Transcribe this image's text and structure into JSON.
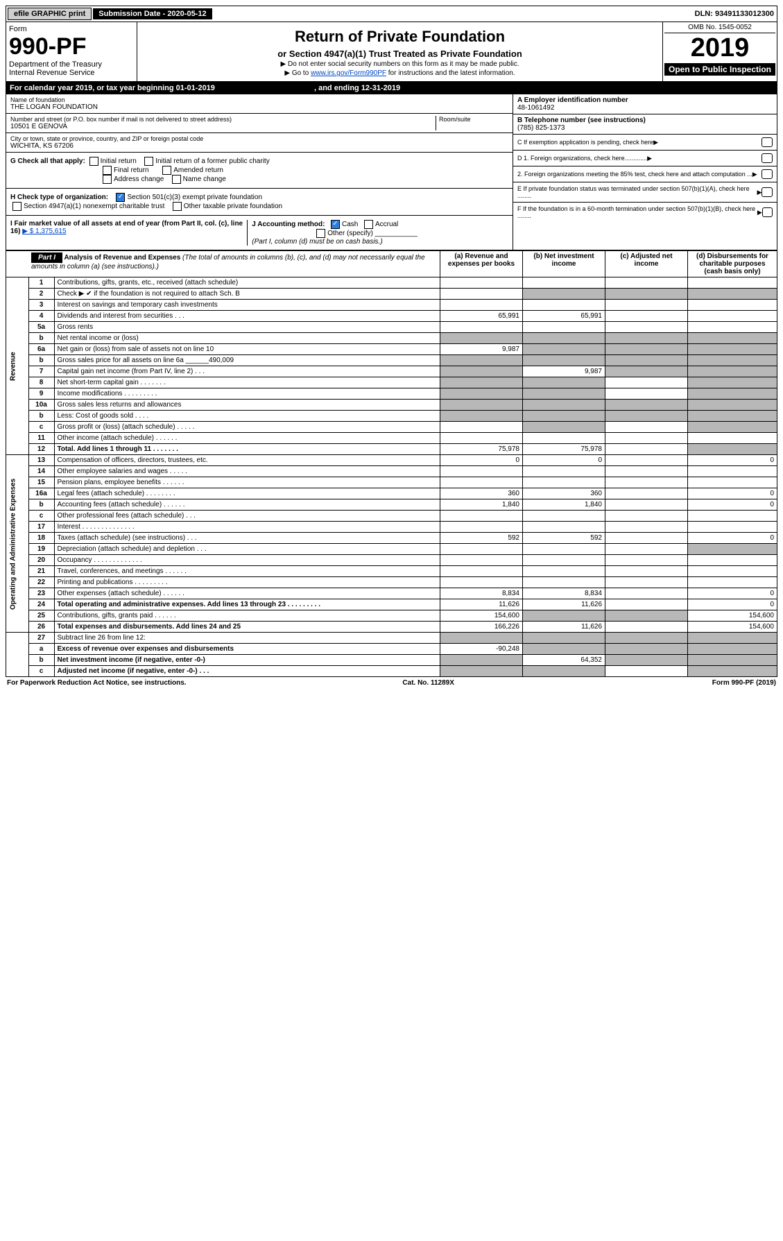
{
  "top": {
    "efile": "efile GRAPHIC print",
    "subdate_label": "Submission Date - 2020-05-12",
    "dln": "DLN: 93491133012300"
  },
  "header": {
    "form_word": "Form",
    "form_num": "990-PF",
    "dept": "Department of the Treasury",
    "irs": "Internal Revenue Service",
    "title": "Return of Private Foundation",
    "subtitle": "or Section 4947(a)(1) Trust Treated as Private Foundation",
    "warn": "▶ Do not enter social security numbers on this form as it may be made public.",
    "goto_pre": "▶ Go to ",
    "goto_link": "www.irs.gov/Form990PF",
    "goto_post": " for instructions and the latest information.",
    "omb": "OMB No. 1545-0052",
    "year": "2019",
    "open": "Open to Public Inspection"
  },
  "cal": {
    "line": "For calendar year 2019, or tax year beginning 01-01-2019",
    "ending": ", and ending 12-31-2019"
  },
  "id": {
    "name_label": "Name of foundation",
    "name": "THE LOGAN FOUNDATION",
    "addr_label": "Number and street (or P.O. box number if mail is not delivered to street address)",
    "addr": "10501 E GENOVA",
    "room_label": "Room/suite",
    "city_label": "City or town, state or province, country, and ZIP or foreign postal code",
    "city": "WICHITA, KS  67206",
    "a_label": "A Employer identification number",
    "a_val": "48-1061492",
    "b_label": "B Telephone number (see instructions)",
    "b_val": "(785) 825-1373",
    "c_label": "C  If exemption application is pending, check here",
    "d1": "D 1. Foreign organizations, check here.............",
    "d2": "2. Foreign organizations meeting the 85% test, check here and attach computation ...",
    "e": "E  If private foundation status was terminated under section 507(b)(1)(A), check here ........",
    "f": "F  If the foundation is in a 60-month termination under section 507(b)(1)(B), check here ........"
  },
  "g": {
    "label": "G Check all that apply:",
    "initial": "Initial return",
    "initial_former": "Initial return of a former public charity",
    "final": "Final return",
    "amended": "Amended return",
    "addr_change": "Address change",
    "name_change": "Name change"
  },
  "h": {
    "label": "H Check type of organization:",
    "s501": "Section 501(c)(3) exempt private foundation",
    "s4947": "Section 4947(a)(1) nonexempt charitable trust",
    "other": "Other taxable private foundation"
  },
  "i": {
    "label": "I Fair market value of all assets at end of year (from Part II, col. (c), line 16)",
    "amt": "▶ $  1,375,615"
  },
  "j": {
    "label": "J Accounting method:",
    "cash": "Cash",
    "accrual": "Accrual",
    "other": "Other (specify)",
    "note": "(Part I, column (d) must be on cash basis.)"
  },
  "part1": {
    "tag": "Part I",
    "title": "Analysis of Revenue and Expenses",
    "sub": " (The total of amounts in columns (b), (c), and (d) may not necessarily equal the amounts in column (a) (see instructions).)",
    "cols": {
      "a": "(a) Revenue and expenses per books",
      "b": "(b) Net investment income",
      "c": "(c) Adjusted net income",
      "d": "(d) Disbursements for charitable purposes (cash basis only)"
    }
  },
  "sections": {
    "rev": "Revenue",
    "exp": "Operating and Administrative Expenses"
  },
  "rows": [
    {
      "n": "1",
      "d": "Contributions, gifts, grants, etc., received (attach schedule)",
      "a": "",
      "b": "",
      "c": "",
      "dd": ""
    },
    {
      "n": "2",
      "d": "Check ▶ ✔ if the foundation is not required to attach Sch. B",
      "a": "",
      "b": "",
      "c": "",
      "dd": "",
      "shadebcd": true
    },
    {
      "n": "3",
      "d": "Interest on savings and temporary cash investments",
      "a": "",
      "b": "",
      "c": "",
      "dd": ""
    },
    {
      "n": "4",
      "d": "Dividends and interest from securities   .   .   .",
      "a": "65,991",
      "b": "65,991",
      "c": "",
      "dd": ""
    },
    {
      "n": "5a",
      "d": "Gross rents",
      "a": "",
      "b": "",
      "c": "",
      "dd": ""
    },
    {
      "n": "b",
      "d": "Net rental income or (loss)  ",
      "a": "",
      "b": "",
      "c": "",
      "dd": "",
      "shadeabcd": true
    },
    {
      "n": "6a",
      "d": "Net gain or (loss) from sale of assets not on line 10",
      "a": "9,987",
      "b": "",
      "c": "",
      "dd": "",
      "shadebcd": true
    },
    {
      "n": "b",
      "d": "Gross sales price for all assets on line 6a ______490,009",
      "a": "",
      "b": "",
      "c": "",
      "dd": "",
      "shadeabcd": true
    },
    {
      "n": "7",
      "d": "Capital gain net income (from Part IV, line 2)   .   .   .",
      "a": "",
      "b": "9,987",
      "c": "",
      "dd": "",
      "shadea": true,
      "shadecd": true
    },
    {
      "n": "8",
      "d": "Net short-term capital gain   .   .   .   .   .   .   .",
      "a": "",
      "b": "",
      "c": "",
      "dd": "",
      "shadeab": true,
      "shaded": true
    },
    {
      "n": "9",
      "d": "Income modifications   .   .   .   .   .   .   .   .   .",
      "a": "",
      "b": "",
      "c": "",
      "dd": "",
      "shadeab": true,
      "shaded": true
    },
    {
      "n": "10a",
      "d": "Gross sales less returns and allowances",
      "a": "",
      "b": "",
      "c": "",
      "dd": "",
      "shadeabcd": true
    },
    {
      "n": "b",
      "d": "Less: Cost of goods sold     .   .   .   .",
      "a": "",
      "b": "",
      "c": "",
      "dd": "",
      "shadeabcd": true
    },
    {
      "n": "c",
      "d": "Gross profit or (loss) (attach schedule)   .   .   .   .   .",
      "a": "",
      "b": "",
      "c": "",
      "dd": "",
      "shadeb": true,
      "shaded": true
    },
    {
      "n": "11",
      "d": "Other income (attach schedule)    .   .   .   .   .   .",
      "a": "",
      "b": "",
      "c": "",
      "dd": ""
    },
    {
      "n": "12",
      "d": "Total. Add lines 1 through 11    .   .   .   .   .   .   .",
      "a": "75,978",
      "b": "75,978",
      "c": "",
      "dd": "",
      "bold": true,
      "shaded": true
    }
  ],
  "exp_rows": [
    {
      "n": "13",
      "d": "Compensation of officers, directors, trustees, etc.",
      "a": "0",
      "b": "0",
      "c": "",
      "dd": "0"
    },
    {
      "n": "14",
      "d": "Other employee salaries and wages    .   .   .   .   .",
      "a": "",
      "b": "",
      "c": "",
      "dd": ""
    },
    {
      "n": "15",
      "d": "Pension plans, employee benefits   .   .   .   .   .   .",
      "a": "",
      "b": "",
      "c": "",
      "dd": ""
    },
    {
      "n": "16a",
      "d": "Legal fees (attach schedule)   .   .   .   .   .   .   .   .",
      "a": "360",
      "b": "360",
      "c": "",
      "dd": "0"
    },
    {
      "n": "b",
      "d": "Accounting fees (attach schedule)   .   .   .   .   .   .",
      "a": "1,840",
      "b": "1,840",
      "c": "",
      "dd": "0"
    },
    {
      "n": "c",
      "d": "Other professional fees (attach schedule)    .   .   .",
      "a": "",
      "b": "",
      "c": "",
      "dd": ""
    },
    {
      "n": "17",
      "d": "Interest   .   .   .   .   .   .   .   .   .   .   .   .   .   .",
      "a": "",
      "b": "",
      "c": "",
      "dd": ""
    },
    {
      "n": "18",
      "d": "Taxes (attach schedule) (see instructions)    .   .   .",
      "a": "592",
      "b": "592",
      "c": "",
      "dd": "0"
    },
    {
      "n": "19",
      "d": "Depreciation (attach schedule) and depletion   .   .   .",
      "a": "",
      "b": "",
      "c": "",
      "dd": "",
      "shaded": true
    },
    {
      "n": "20",
      "d": "Occupancy   .   .   .   .   .   .   .   .   .   .   .   .   .",
      "a": "",
      "b": "",
      "c": "",
      "dd": ""
    },
    {
      "n": "21",
      "d": "Travel, conferences, and meetings   .   .   .   .   .   .",
      "a": "",
      "b": "",
      "c": "",
      "dd": ""
    },
    {
      "n": "22",
      "d": "Printing and publications   .   .   .   .   .   .   .   .   .",
      "a": "",
      "b": "",
      "c": "",
      "dd": ""
    },
    {
      "n": "23",
      "d": "Other expenses (attach schedule)   .   .   .   .   .   .",
      "a": "8,834",
      "b": "8,834",
      "c": "",
      "dd": "0"
    },
    {
      "n": "24",
      "d": "Total operating and administrative expenses. Add lines 13 through 23   .   .   .   .   .   .   .   .   .",
      "a": "11,626",
      "b": "11,626",
      "c": "",
      "dd": "0",
      "bold": true
    },
    {
      "n": "25",
      "d": "Contributions, gifts, grants paid     .   .   .   .   .   .",
      "a": "154,600",
      "b": "",
      "c": "",
      "dd": "154,600",
      "shadebc": true
    },
    {
      "n": "26",
      "d": "Total expenses and disbursements. Add lines 24 and 25",
      "a": "166,226",
      "b": "11,626",
      "c": "",
      "dd": "154,600",
      "bold": true
    }
  ],
  "bottom_rows": [
    {
      "n": "27",
      "d": "Subtract line 26 from line 12:",
      "a": "",
      "b": "",
      "c": "",
      "dd": "",
      "shadeabcd": true
    },
    {
      "n": "a",
      "d": "Excess of revenue over expenses and disbursements",
      "a": "-90,248",
      "b": "",
      "c": "",
      "dd": "",
      "bold": true,
      "shadebcd": true
    },
    {
      "n": "b",
      "d": "Net investment income (if negative, enter -0-)",
      "a": "",
      "b": "64,352",
      "c": "",
      "dd": "",
      "bold": true,
      "shadea": true,
      "shadecd": true
    },
    {
      "n": "c",
      "d": "Adjusted net income (if negative, enter -0-)   .   .   .",
      "a": "",
      "b": "",
      "c": "",
      "dd": "",
      "bold": true,
      "shadeab": true,
      "shaded": true
    }
  ],
  "footer": {
    "left": "For Paperwork Reduction Act Notice, see instructions.",
    "mid": "Cat. No. 11289X",
    "right": "Form 990-PF (2019)"
  }
}
